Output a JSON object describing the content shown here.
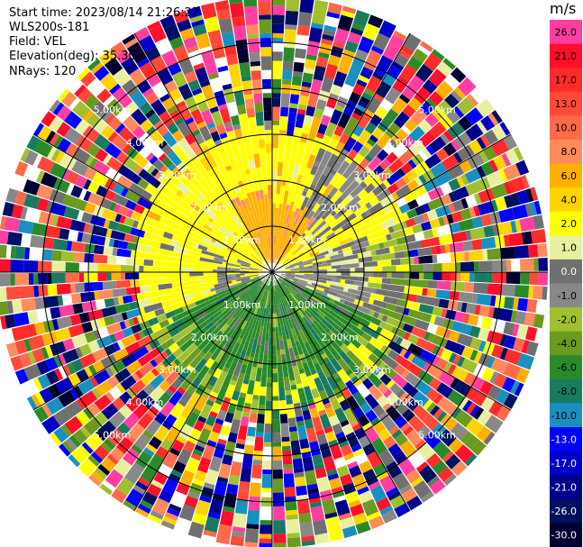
{
  "header": {
    "start_time": "Start time: 2023/08/14 21:26:27",
    "station": "WLS200s-181",
    "field": "Field: VEL",
    "elevation": "Elevation(deg): 35.30",
    "nrays": "NRays: 120"
  },
  "colorbar": {
    "unit": "m/s",
    "entries": [
      {
        "label": "26.0",
        "color": "#ff3ea0"
      },
      {
        "label": "21.0",
        "color": "#ff0f2a"
      },
      {
        "label": "17.0",
        "color": "#ff2a2a"
      },
      {
        "label": "13.0",
        "color": "#ff4a3a"
      },
      {
        "label": "10.0",
        "color": "#ff6a4a"
      },
      {
        "label": "8.0",
        "color": "#ff8a5a"
      },
      {
        "label": "6.0",
        "color": "#ffb000"
      },
      {
        "label": "4.0",
        "color": "#ffd400"
      },
      {
        "label": "2.0",
        "color": "#ffff00"
      },
      {
        "label": "1.0",
        "color": "#e8f0a0"
      },
      {
        "label": "0.0",
        "color": "#707070"
      },
      {
        "label": "-1.0",
        "color": "#888888"
      },
      {
        "label": "-2.0",
        "color": "#a0c030"
      },
      {
        "label": "-4.0",
        "color": "#6a9a20"
      },
      {
        "label": "-6.0",
        "color": "#2a8a2a"
      },
      {
        "label": "-8.0",
        "color": "#1a7a60"
      },
      {
        "label": "-10.0",
        "color": "#1a90c0"
      },
      {
        "label": "-13.0",
        "color": "#0000ff"
      },
      {
        "label": "-17.0",
        "color": "#0000c8"
      },
      {
        "label": "-21.0",
        "color": "#00008a"
      },
      {
        "label": "-26.0",
        "color": "#001060"
      },
      {
        "label": "-30.0",
        "color": "#000030"
      }
    ]
  },
  "chart_data": {
    "type": "ppi_radar",
    "field": "VEL",
    "nrays": 120,
    "rings_km": [
      1,
      2,
      3,
      4,
      5
    ],
    "ring_labels": [
      "1.00km",
      "2.00km",
      "3.00km",
      "4.00km",
      "5.00km"
    ],
    "spokes_deg": [
      0,
      30,
      60,
      90,
      120,
      150,
      180,
      210,
      240,
      270,
      300,
      330
    ],
    "range_max_km": 6.0,
    "regions": [
      {
        "name": "near-north",
        "max_km": 1.8,
        "dominant": "6.0"
      },
      {
        "name": "north-yellow",
        "max_km": 3.4,
        "dominant": "2.0"
      },
      {
        "name": "east-gray",
        "max_km": 2.2,
        "dominant": "0.0"
      },
      {
        "name": "south-green",
        "max_km": 2.4,
        "dominant": "-6.0"
      },
      {
        "name": "outer-noise",
        "min_km": 3.4,
        "dominant": "mixed"
      }
    ],
    "colorbar_range": [
      -30.0,
      26.0
    ]
  }
}
